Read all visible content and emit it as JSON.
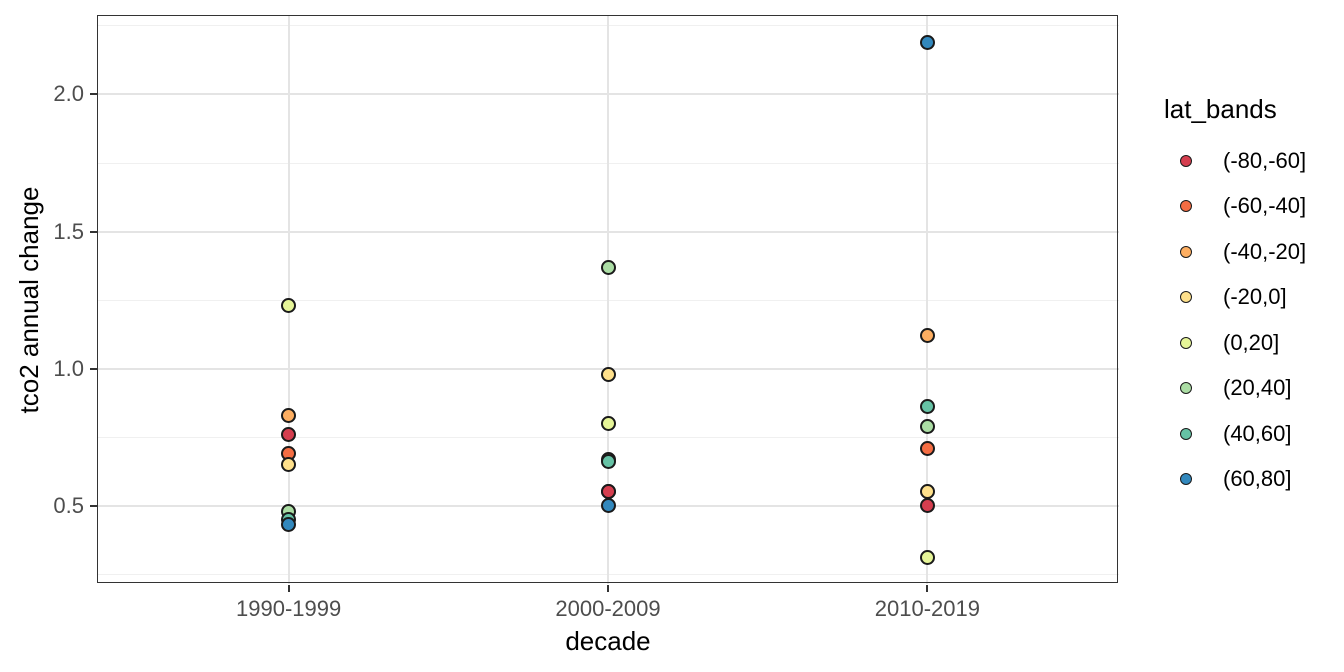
{
  "figure": {
    "background": "#ffffff",
    "panel_border_color": "#333333",
    "grid_major_color": "#e4e4e4",
    "grid_minor_color": "#f0f0f0",
    "tick_color": "#333333",
    "tick_label_color": "#4d4d4d",
    "point_stroke_color": "#1a1a1a"
  },
  "chart_data": {
    "type": "scatter",
    "title": "",
    "xlabel": "decade",
    "ylabel": "tco2 annual change",
    "legend_title": "lat_bands",
    "legend_position": "right",
    "grid": true,
    "categories": [
      "1990-1999",
      "2000-2009",
      "2010-2019"
    ],
    "y_ticks": [
      0.5,
      1.0,
      1.5,
      2.0
    ],
    "y_tick_labels": [
      "0.5",
      "1.0",
      "1.5",
      "2.0"
    ],
    "y_minor_ticks": [
      0.25,
      0.75,
      1.25,
      1.75,
      2.25
    ],
    "ylim": [
      0.214,
      2.29
    ],
    "series": [
      {
        "name": "(-80,-60]",
        "color": "#d53e4f",
        "values": [
          0.76,
          0.55,
          0.5
        ]
      },
      {
        "name": "(-60,-40]",
        "color": "#f46d43",
        "values": [
          0.69,
          0.551,
          0.71
        ]
      },
      {
        "name": "(-40,-20]",
        "color": "#fdae61",
        "values": [
          0.83,
          0.67,
          1.12
        ]
      },
      {
        "name": "(-20,0]",
        "color": "#fee08b",
        "values": [
          0.65,
          0.98,
          0.55
        ]
      },
      {
        "name": "(0,20]",
        "color": "#e6f598",
        "values": [
          1.23,
          0.8,
          0.31
        ]
      },
      {
        "name": "(20,40]",
        "color": "#abdda4",
        "values": [
          0.48,
          1.37,
          0.79
        ]
      },
      {
        "name": "(40,60]",
        "color": "#66c2a5",
        "values": [
          0.45,
          0.66,
          0.86
        ]
      },
      {
        "name": "(60,80]",
        "color": "#3288bd",
        "values": [
          0.43,
          0.5,
          2.19
        ]
      }
    ]
  }
}
